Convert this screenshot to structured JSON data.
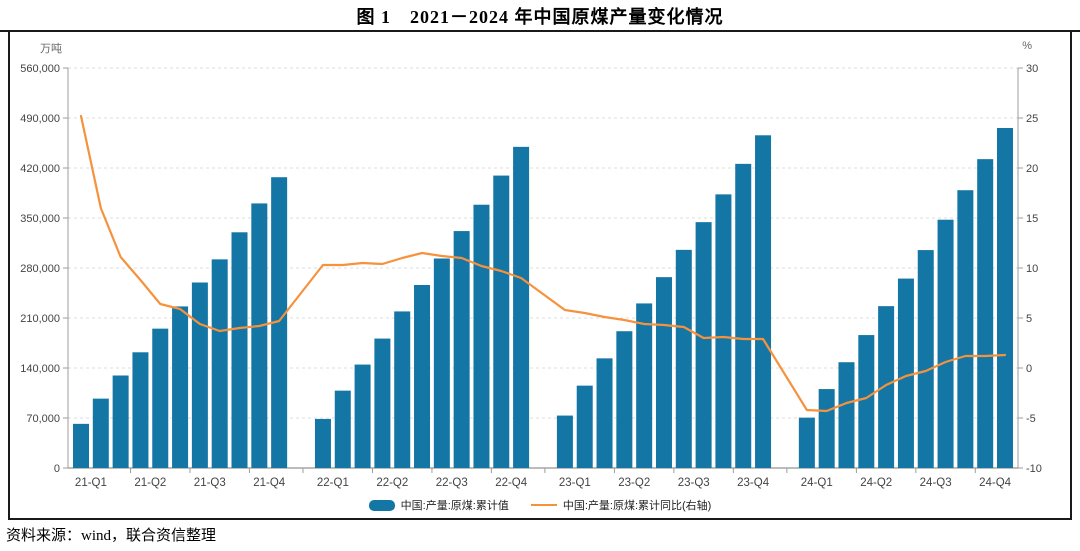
{
  "title": "图 1　2021－2024 年中国原煤产量变化情况",
  "source_note": "资料来源：wind，联合资信整理",
  "chart_data": {
    "type": "bar+line",
    "title": "图 1　2021－2024 年中国原煤产量变化情况",
    "grid": "horizontal-dashed",
    "legend_position": "bottom-center",
    "left_axis": {
      "unit": "万吨",
      "min": 0,
      "max": 560000,
      "tick_step": 70000,
      "tick_labels": [
        "0",
        "70,000",
        "140,000",
        "210,000",
        "280,000",
        "350,000",
        "420,000",
        "490,000",
        "560,000"
      ]
    },
    "right_axis": {
      "unit": "%",
      "min": -10,
      "max": 30,
      "tick_step": 5,
      "tick_labels": [
        "-10",
        "-5",
        "0",
        "5",
        "10",
        "15",
        "20",
        "25",
        "30"
      ]
    },
    "x_labels": [
      "21-Q1",
      "21-Q2",
      "21-Q3",
      "21-Q4",
      "22-Q1",
      "22-Q2",
      "22-Q3",
      "22-Q4",
      "23-Q1",
      "23-Q2",
      "23-Q3",
      "23-Q4",
      "24-Q1",
      "24-Q2",
      "24-Q3",
      "24-Q4"
    ],
    "series": [
      {
        "name": "中国:产量:原煤:累计值",
        "type": "bar",
        "axis": "left",
        "color": "#1476A5",
        "values_by_year": [
          {
            "year": "2021",
            "values": [
              61800,
              97100,
              129500,
              162000,
              195100,
              226200,
              259700,
              292100,
              330000,
              370400,
              407100
            ]
          },
          {
            "year": "2022",
            "values": [
              68700,
              108300,
              144800,
              181200,
              219200,
              256200,
              293300,
              331700,
              368600,
              409400,
              449600
            ]
          },
          {
            "year": "2023",
            "values": [
              73400,
              115300,
              153500,
              191500,
              230400,
              267200,
              305400,
              344200,
              383100,
              425800,
              465800
            ]
          },
          {
            "year": "2024",
            "values": [
              70500,
              110500,
              148100,
              186100,
              226600,
              265200,
              305100,
              347600,
              388900,
              432400,
              476000
            ]
          }
        ]
      },
      {
        "name": "中国:产量:原煤:累计同比(右轴)",
        "type": "line",
        "axis": "right",
        "color": "#F6923D",
        "values_by_year": [
          {
            "year": "2021",
            "values": [
              25.2,
              16.0,
              11.1,
              8.8,
              6.4,
              5.9,
              4.4,
              3.7,
              4.0,
              4.2,
              4.7
            ]
          },
          {
            "year": "2022",
            "values": [
              10.3,
              10.3,
              10.5,
              10.4,
              11.0,
              11.5,
              11.2,
              11.0,
              10.2,
              9.7,
              9.0
            ]
          },
          {
            "year": "2023",
            "values": [
              5.8,
              5.5,
              5.1,
              4.8,
              4.4,
              4.3,
              4.1,
              3.0,
              3.1,
              2.9,
              2.9
            ]
          },
          {
            "year": "2024",
            "values": [
              -4.2,
              -4.3,
              -3.5,
              -3.0,
              -1.7,
              -0.8,
              -0.3,
              0.6,
              1.2,
              1.2,
              1.3
            ]
          }
        ]
      }
    ]
  }
}
